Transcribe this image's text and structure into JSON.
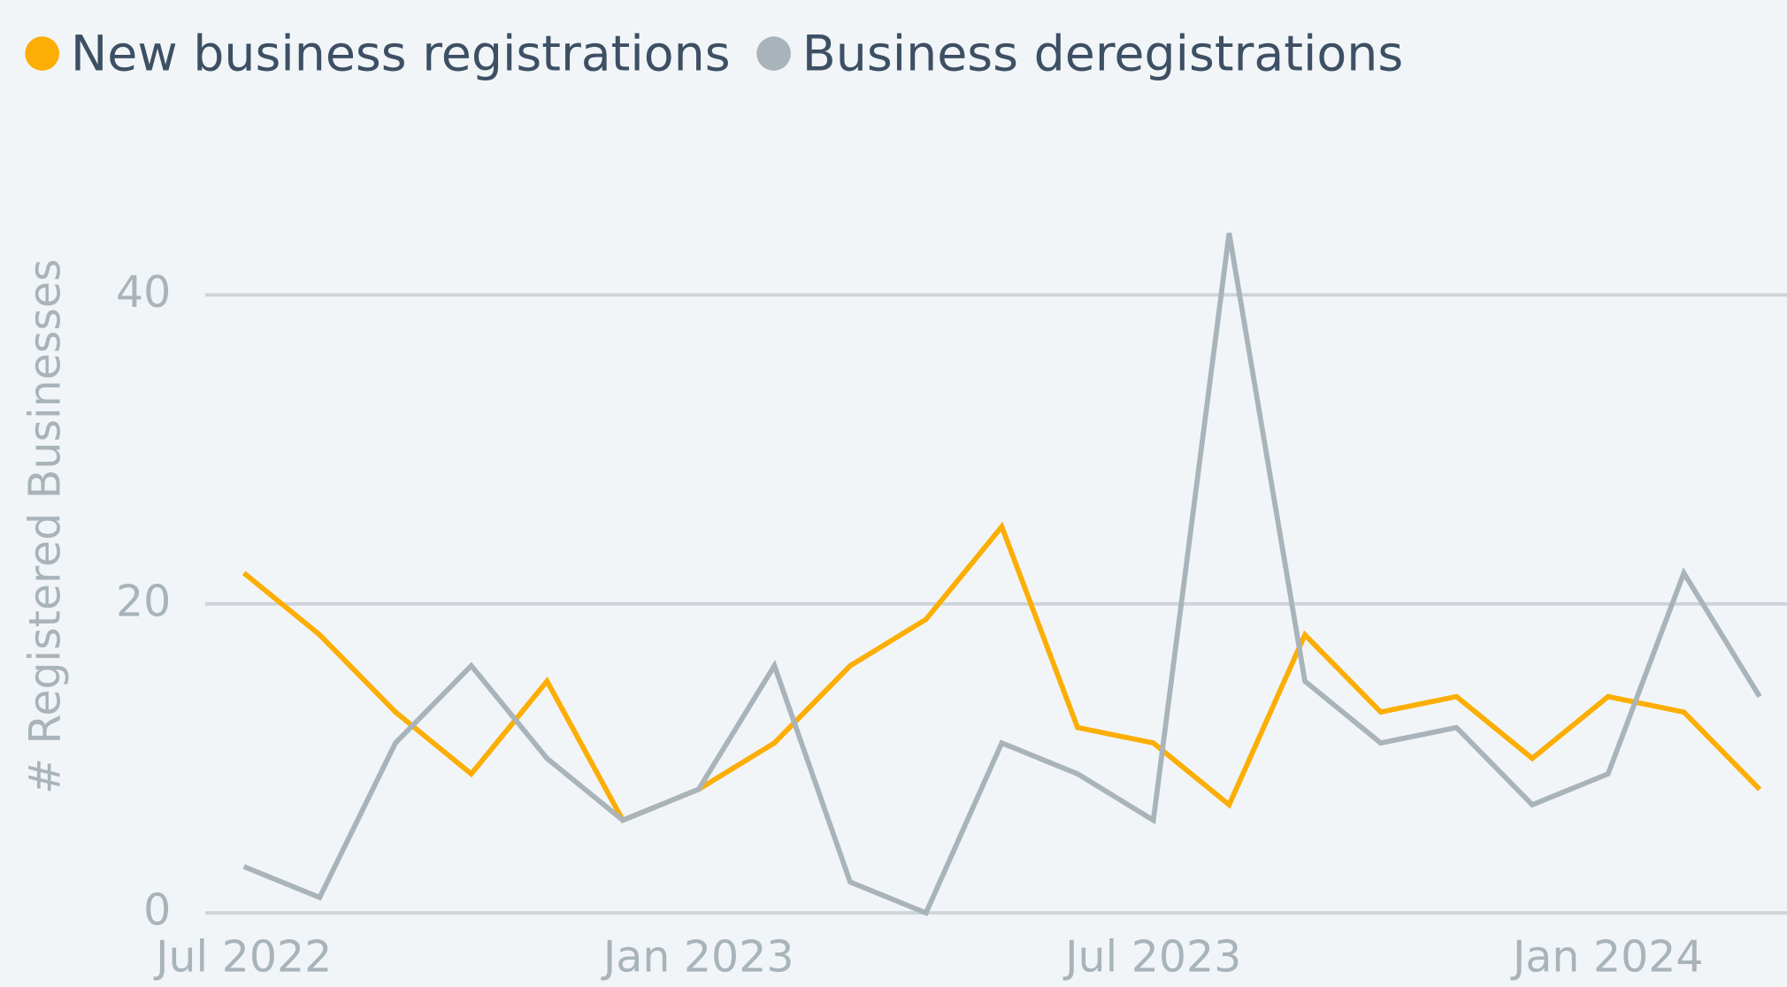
{
  "chart_data": {
    "type": "line",
    "categories": [
      "Jul 2022",
      null,
      null,
      null,
      null,
      null,
      "Jan 2023",
      null,
      null,
      null,
      null,
      null,
      "Jul 2023",
      null,
      null,
      null,
      null,
      null,
      "Jan 2024",
      null,
      null
    ],
    "series": [
      {
        "name": "New business registrations",
        "color": "#fcae05",
        "values": [
          22,
          18,
          13,
          9,
          15,
          6,
          8,
          11,
          16,
          19,
          25,
          12,
          11,
          7,
          18,
          13,
          14,
          10,
          14,
          13,
          8
        ]
      },
      {
        "name": "Business deregistrations",
        "color": "#a9b4ba",
        "values": [
          3,
          1,
          11,
          16,
          10,
          6,
          8,
          16,
          2,
          0,
          11,
          9,
          6,
          44,
          15,
          11,
          12,
          7,
          9,
          22,
          14
        ]
      }
    ],
    "ylabel": "# Registered Businesses",
    "ylim": [
      0,
      45
    ],
    "yticks": [
      0,
      20,
      40
    ],
    "grid": true
  }
}
